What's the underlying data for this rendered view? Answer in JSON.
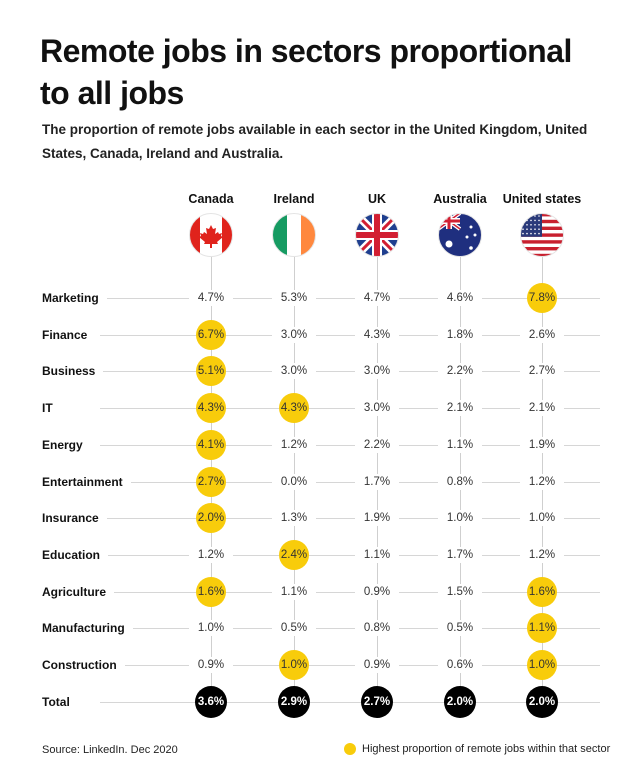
{
  "title": "Remote jobs in sectors proportional to all jobs",
  "subtitle": "The proportion of remote jobs available in each sector in the United Kingdom, United States, Canada, Ireland and Australia.",
  "source": "Source: LinkedIn. Dec 2020",
  "legend": "Highest proportion of remote jobs within that sector",
  "colors": {
    "highlight": "#f8cc0b",
    "total": "#000000",
    "grid": "#d6d6d6"
  },
  "chart_data": {
    "type": "table",
    "columns": [
      {
        "name": "Canada",
        "icon": "canada-flag-icon"
      },
      {
        "name": "Ireland",
        "icon": "ireland-flag-icon"
      },
      {
        "name": "UK",
        "icon": "uk-flag-icon"
      },
      {
        "name": "Australia",
        "icon": "australia-flag-icon"
      },
      {
        "name": "United states",
        "icon": "usa-flag-icon"
      }
    ],
    "rows": [
      {
        "sector": "Marketing",
        "values": [
          "4.7%",
          "5.3%",
          "4.7%",
          "4.6%",
          "7.8%"
        ],
        "highlight": [
          false,
          false,
          false,
          false,
          true
        ]
      },
      {
        "sector": "Finance",
        "values": [
          "6.7%",
          "3.0%",
          "4.3%",
          "1.8%",
          "2.6%"
        ],
        "highlight": [
          true,
          false,
          false,
          false,
          false
        ]
      },
      {
        "sector": "Business",
        "values": [
          "5.1%",
          "3.0%",
          "3.0%",
          "2.2%",
          "2.7%"
        ],
        "highlight": [
          true,
          false,
          false,
          false,
          false
        ]
      },
      {
        "sector": "IT",
        "values": [
          "4.3%",
          "4.3%",
          "3.0%",
          "2.1%",
          "2.1%"
        ],
        "highlight": [
          true,
          true,
          false,
          false,
          false
        ]
      },
      {
        "sector": "Energy",
        "values": [
          "4.1%",
          "1.2%",
          "2.2%",
          "1.1%",
          "1.9%"
        ],
        "highlight": [
          true,
          false,
          false,
          false,
          false
        ]
      },
      {
        "sector": "Entertainment",
        "values": [
          "2.7%",
          "0.0%",
          "1.7%",
          "0.8%",
          "1.2%"
        ],
        "highlight": [
          true,
          false,
          false,
          false,
          false
        ]
      },
      {
        "sector": "Insurance",
        "values": [
          "2.0%",
          "1.3%",
          "1.9%",
          "1.0%",
          "1.0%"
        ],
        "highlight": [
          true,
          false,
          false,
          false,
          false
        ]
      },
      {
        "sector": "Education",
        "values": [
          "1.2%",
          "2.4%",
          "1.1%",
          "1.7%",
          "1.2%"
        ],
        "highlight": [
          false,
          true,
          false,
          false,
          false
        ]
      },
      {
        "sector": "Agriculture",
        "values": [
          "1.6%",
          "1.1%",
          "0.9%",
          "1.5%",
          "1.6%"
        ],
        "highlight": [
          true,
          false,
          false,
          false,
          true
        ]
      },
      {
        "sector": "Manufacturing",
        "values": [
          "1.0%",
          "0.5%",
          "0.8%",
          "0.5%",
          "1.1%"
        ],
        "highlight": [
          false,
          false,
          false,
          false,
          true
        ]
      },
      {
        "sector": "Construction",
        "values": [
          "0.9%",
          "1.0%",
          "0.9%",
          "0.6%",
          "1.0%"
        ],
        "highlight": [
          false,
          true,
          false,
          false,
          true
        ]
      }
    ],
    "total": {
      "sector": "Total",
      "values": [
        "3.6%",
        "2.9%",
        "2.7%",
        "2.0%",
        "2.0%"
      ]
    }
  }
}
